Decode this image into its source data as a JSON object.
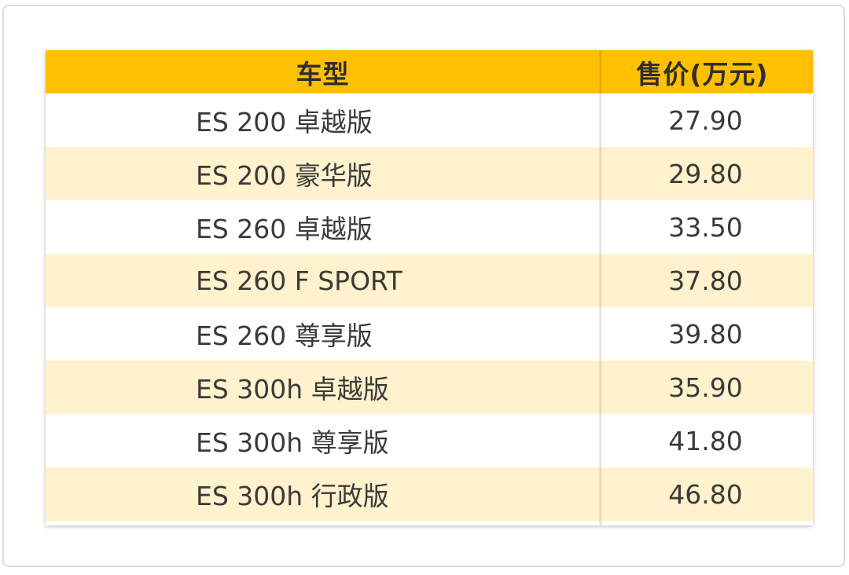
{
  "table": {
    "headers": {
      "model": "车型",
      "price": "售价(万元)"
    },
    "rows": [
      {
        "model": "ES 200 卓越版",
        "price": "27.90"
      },
      {
        "model": "ES 200 豪华版",
        "price": "29.80"
      },
      {
        "model": "ES 260 卓越版",
        "price": "33.50"
      },
      {
        "model": "ES 260 F SPORT",
        "price": "37.80"
      },
      {
        "model": "ES 260 尊享版",
        "price": "39.80"
      },
      {
        "model": "ES 300h 卓越版",
        "price": "35.90"
      },
      {
        "model": "ES 300h 尊享版",
        "price": "41.80"
      },
      {
        "model": "ES 300h 行政版",
        "price": "46.80"
      }
    ]
  },
  "colors": {
    "header_bg": "#ffc000",
    "alt_row_bg": "#fff2cc",
    "row_bg": "#ffffff",
    "frame_border": "#dcdcdc"
  }
}
